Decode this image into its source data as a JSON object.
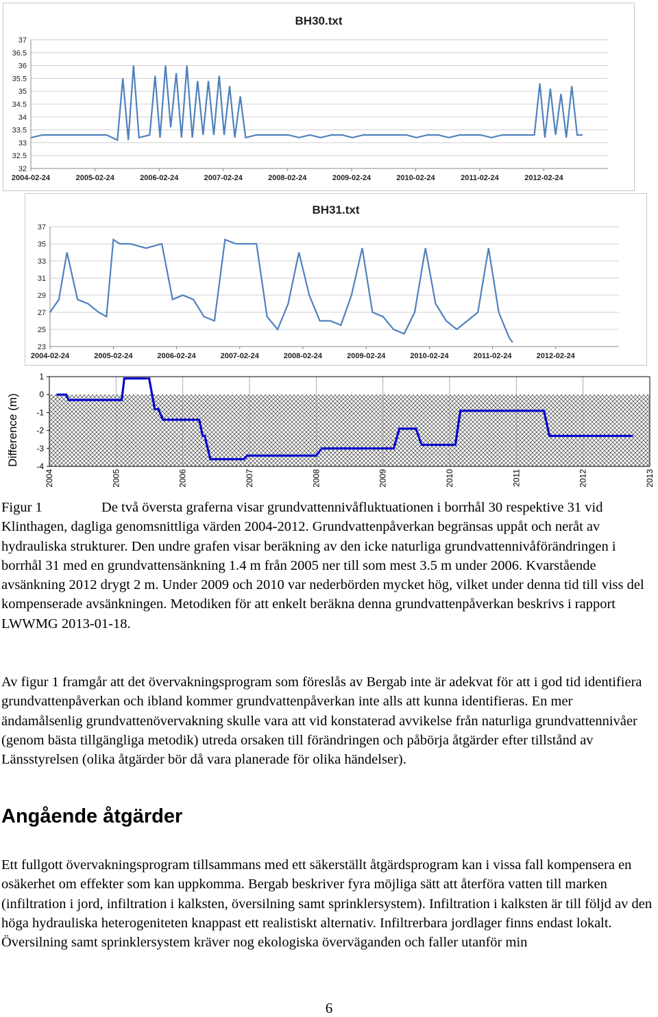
{
  "chart_data": [
    {
      "type": "line",
      "title": "BH30.txt",
      "ylim": [
        32,
        37
      ],
      "yticks": [
        "37",
        "36.5",
        "36",
        "35.5",
        "35",
        "34.5",
        "34",
        "33.5",
        "33",
        "32.5",
        "32"
      ],
      "xticks": [
        "2004-02-24",
        "2005-02-24",
        "2006-02-24",
        "2007-02-24",
        "2008-02-24",
        "2009-02-24",
        "2010-02-24",
        "2011-02-24",
        "2012-02-24"
      ],
      "grid": true,
      "line_color": "#4f81bd",
      "series": [
        {
          "x": [
            "2004-02-24",
            "2004-05-01",
            "2004-08-01",
            "2004-11-01",
            "2005-02-01",
            "2005-05-01",
            "2005-07-01",
            "2005-08-01",
            "2005-09-01",
            "2005-10-01",
            "2005-11-01",
            "2006-01-01",
            "2006-02-01",
            "2006-03-01",
            "2006-04-01",
            "2006-05-01",
            "2006-06-01",
            "2006-07-01",
            "2006-08-01",
            "2006-09-01",
            "2006-10-01",
            "2006-11-01",
            "2006-12-01",
            "2007-01-01",
            "2007-02-01",
            "2007-03-01",
            "2007-04-01",
            "2007-05-01",
            "2007-06-01",
            "2007-07-01",
            "2007-09-01",
            "2007-11-01",
            "2008-01-01",
            "2008-03-01",
            "2008-05-01",
            "2008-07-01",
            "2008-09-01",
            "2008-11-01",
            "2009-01-01",
            "2009-03-01",
            "2009-05-01",
            "2009-07-01",
            "2009-09-01",
            "2009-11-01",
            "2010-01-01",
            "2010-03-01",
            "2010-05-01",
            "2010-07-01",
            "2010-09-01",
            "2010-11-01",
            "2011-01-01",
            "2011-03-01",
            "2011-05-01",
            "2011-07-01",
            "2011-09-01",
            "2011-11-01",
            "2012-01-01",
            "2012-02-01",
            "2012-03-01",
            "2012-04-01",
            "2012-05-01",
            "2012-06-01",
            "2012-07-01",
            "2012-08-01",
            "2012-09-01",
            "2012-10-01"
          ],
          "values": [
            33.2,
            33.3,
            33.3,
            33.3,
            33.3,
            33.3,
            33.1,
            35.5,
            33.1,
            36.0,
            33.2,
            33.3,
            35.6,
            33.2,
            36.0,
            33.6,
            35.7,
            33.2,
            36.0,
            33.2,
            35.4,
            33.3,
            35.4,
            33.3,
            35.6,
            33.3,
            35.2,
            33.2,
            34.8,
            33.2,
            33.3,
            33.3,
            33.3,
            33.3,
            33.2,
            33.3,
            33.2,
            33.3,
            33.3,
            33.2,
            33.3,
            33.3,
            33.3,
            33.3,
            33.3,
            33.2,
            33.3,
            33.3,
            33.2,
            33.3,
            33.3,
            33.3,
            33.2,
            33.3,
            33.3,
            33.3,
            33.3,
            35.3,
            33.2,
            35.1,
            33.3,
            34.9,
            33.2,
            35.2,
            33.3,
            33.3
          ]
        }
      ]
    },
    {
      "type": "line",
      "title": "BH31.txt",
      "ylim": [
        23,
        37
      ],
      "yticks": [
        "37",
        "35",
        "33",
        "31",
        "29",
        "27",
        "25",
        "23"
      ],
      "xticks": [
        "2004-02-24",
        "2005-02-24",
        "2006-02-24",
        "2007-02-24",
        "2008-02-24",
        "2009-02-24",
        "2010-02-24",
        "2011-02-24",
        "2012-02-24"
      ],
      "grid": true,
      "line_color": "#4f81bd",
      "series": [
        {
          "x": [
            "2004-02-24",
            "2004-04-15",
            "2004-06-01",
            "2004-08-01",
            "2004-10-01",
            "2004-12-01",
            "2005-01-15",
            "2005-02-24",
            "2005-04-01",
            "2005-06-01",
            "2005-09-01",
            "2005-12-01",
            "2006-02-01",
            "2006-04-01",
            "2006-06-01",
            "2006-08-01",
            "2006-10-01",
            "2006-12-01",
            "2007-02-01",
            "2007-04-01",
            "2007-06-01",
            "2007-08-01",
            "2007-10-01",
            "2007-12-01",
            "2008-02-01",
            "2008-04-01",
            "2008-06-01",
            "2008-08-01",
            "2008-10-01",
            "2008-12-01",
            "2009-02-01",
            "2009-04-01",
            "2009-06-01",
            "2009-08-01",
            "2009-10-01",
            "2009-12-01",
            "2010-02-01",
            "2010-04-01",
            "2010-06-01",
            "2010-08-01",
            "2010-10-01",
            "2010-12-01",
            "2011-02-01",
            "2011-04-01",
            "2011-05-01",
            "2011-06-01",
            "2011-06-20"
          ],
          "values": [
            27.0,
            28.5,
            34.0,
            28.5,
            28.0,
            27.0,
            26.5,
            35.5,
            35.0,
            35.0,
            34.5,
            35.0,
            28.5,
            29.0,
            28.5,
            26.5,
            26.0,
            35.5,
            35.0,
            35.0,
            35.0,
            26.5,
            25.0,
            28.0,
            34.0,
            29.0,
            26.0,
            26.0,
            25.5,
            29.0,
            34.5,
            27.0,
            26.5,
            25.0,
            24.5,
            27.0,
            34.5,
            28.0,
            26.0,
            25.0,
            26.0,
            27.0,
            34.5,
            27.0,
            25.5,
            24.0,
            23.5
          ]
        }
      ]
    },
    {
      "type": "line",
      "ylabel": "Difference (m)",
      "ylim": [
        -4,
        1
      ],
      "yticks": [
        "1",
        "0",
        "-1",
        "-2",
        "-3",
        "-4"
      ],
      "xticks": [
        "2004",
        "2005",
        "2006",
        "2007",
        "2008",
        "2009",
        "2010",
        "2011",
        "2012",
        "2013"
      ],
      "line_color": "#0000cc",
      "series": [
        {
          "x": [
            "2004-02-15",
            "2004-04-01",
            "2004-04-15",
            "2004-07-01",
            "2004-07-15",
            "2005-02-01",
            "2005-02-15",
            "2005-06-10",
            "2005-07-01",
            "2005-08-01",
            "2005-08-20",
            "2005-09-15",
            "2005-10-15",
            "2006-02-01",
            "2006-04-01",
            "2006-04-20",
            "2006-05-01",
            "2006-06-01",
            "2006-06-15",
            "2006-12-01",
            "2006-12-20",
            "2007-01-15",
            "2007-09-01",
            "2007-10-01",
            "2007-11-01",
            "2008-01-01",
            "2008-02-01",
            "2008-10-01",
            "2008-11-01",
            "2009-03-01",
            "2009-04-01",
            "2009-07-01",
            "2009-08-01",
            "2009-12-01",
            "2010-02-01",
            "2010-03-01",
            "2010-06-01",
            "2010-09-01",
            "2010-12-01",
            "2011-03-01",
            "2011-03-15",
            "2011-06-01",
            "2011-07-01",
            "2011-09-01",
            "2011-11-01",
            "2012-01-01",
            "2012-03-01",
            "2012-05-01",
            "2012-07-01",
            "2012-09-01",
            "2012-10-01"
          ],
          "values": [
            0,
            0,
            -0.3,
            -0.3,
            -0.3,
            -0.3,
            0.9,
            0.9,
            0.9,
            -0.8,
            -0.8,
            -1.4,
            -1.4,
            -1.4,
            -1.4,
            -2.3,
            -2.3,
            -3.6,
            -3.6,
            -3.6,
            -3.4,
            -3.4,
            -3.4,
            -3.4,
            -3.4,
            -3.4,
            -3.0,
            -3.0,
            -3.0,
            -3.0,
            -1.9,
            -1.9,
            -2.8,
            -2.8,
            -2.8,
            -0.9,
            -0.9,
            -0.9,
            -0.9,
            -0.9,
            -0.9,
            -0.9,
            -2.3,
            -2.3,
            -2.3,
            -2.3,
            -2.3,
            -2.3,
            -2.3,
            -2.3,
            -2.3
          ]
        }
      ]
    }
  ],
  "caption": {
    "label": "Figur 1",
    "text": "De två översta graferna visar grundvattennivåfluktuationen i borrhål 30 respektive 31 vid Klinthagen, dagliga genomsnittliga värden 2004-2012. Grundvattenpåverkan begränsas uppåt och neråt av hydrauliska strukturer. Den undre grafen visar beräkning av den icke naturliga grundvattennivåförändringen i borrhål 31 med en grundvattensänkning 1.4 m från 2005 ner till som mest 3.5 m under 2006. Kvarstående avsänkning 2012 drygt 2 m. Under 2009 och 2010 var nederbörden mycket hög, vilket under denna tid till viss del kompenserade avsänkningen. Metodiken för att enkelt beräkna denna grundvattenpåverkan beskrivs i rapport LWWMG 2013-01-18."
  },
  "paragraph1": "Av figur 1 framgår att det övervakningsprogram som föreslås av Bergab inte är adekvat för att i god tid identifiera grundvattenpåverkan och ibland kommer grundvattenpåverkan inte alls att kunna identifieras. En mer ändamålsenlig grundvattenövervakning skulle vara att vid konstaterad avvikelse från naturliga grundvattennivåer (genom bästa tillgängliga metodik) utreda orsaken till förändringen och påbörja åtgärder efter tillstånd av Länsstyrelsen (olika åtgärder bör då vara planerade för olika händelser).",
  "heading": "Angående åtgärder",
  "paragraph2": "Ett fullgott övervakningsprogram tillsammans med ett säkerställt åtgärdsprogram kan i vissa fall kompensera en osäkerhet om effekter som kan uppkomma. Bergab beskriver fyra möjliga sätt att återföra vatten till marken (infiltration i jord, infiltration i kalksten, översilning samt sprinklersystem). Infiltration i kalksten är till följd av den höga hydrauliska heterogeniteten knappast ett realistiskt alternativ. Infiltrerbara jordlager finns endast lokalt. Översilning samt sprinklersystem kräver nog ekologiska överväganden och faller utanför min",
  "page_number": "6"
}
